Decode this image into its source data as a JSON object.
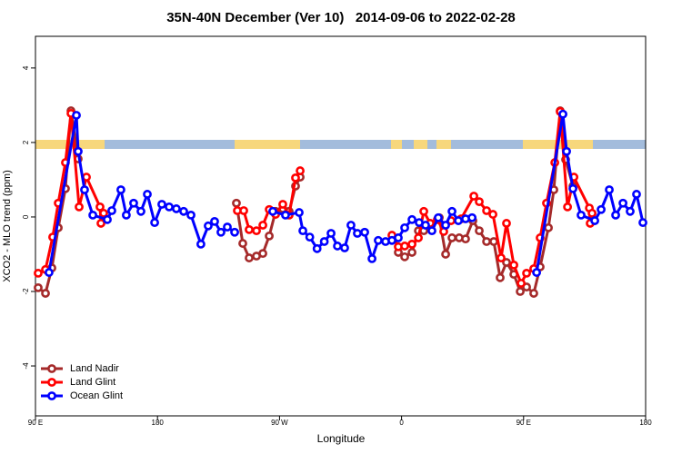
{
  "chart_data": {
    "type": "line",
    "title": "35N-40N December (Ver 10)   2014-09-06 to 2022-02-28",
    "x_label": "Longitude",
    "y_label": "XCO2 - MLO trend (ppm)",
    "xlim": [
      90,
      540
    ],
    "ylim": [
      -5.34,
      4.85
    ],
    "xticks": [
      {
        "value": 90,
        "label": "90 E"
      },
      180,
      {
        "value": 270,
        "label": "90 W"
      },
      {
        "value": 360,
        "label": "0"
      },
      {
        "value": 450,
        "label": "90 E"
      },
      {
        "value": 540,
        "label": "180"
      }
    ],
    "yticks": [
      -4,
      -2,
      0,
      2,
      4
    ],
    "legend": "bottom-left",
    "series": [
      {
        "name": "Land Nadir",
        "color": "#a52a2a",
        "x": [
          92,
          97.4,
          102.1,
          106.8,
          112.1,
          116.2,
          121.5,
          null,
          238.2,
          242.9,
          247.6,
          253,
          257.7,
          262.4,
          267.1,
          272.4,
          277.1,
          281.8,
          285.2,
          null,
          357.6,
          362.3,
          367.7,
          372.4,
          376.4,
          381.8,
          387.8,
          392.5,
          397.2,
          402.5,
          407.2,
          412.6,
          417.3,
          422.7,
          428,
          432.7,
          437.4,
          442.8,
          447.5,
          452.2,
          457.5,
          462.2,
          468.3,
          472.3,
          477,
          481,
          486.4
        ],
        "values": [
          -1.9,
          -2.05,
          -1.37,
          -0.29,
          0.76,
          2.85,
          1.56,
          null,
          0.37,
          -0.71,
          -1.1,
          -1.05,
          -0.98,
          -0.51,
          0.15,
          0.22,
          0.15,
          0.83,
          1.07,
          null,
          -0.95,
          -1.07,
          -0.95,
          -0.37,
          -0.37,
          -0.22,
          -0.02,
          -1.0,
          -0.56,
          -0.56,
          -0.59,
          -0.1,
          -0.37,
          -0.66,
          -0.66,
          -1.63,
          -1.22,
          -1.54,
          -2.0,
          -1.88,
          -2.05,
          -1.34,
          -0.29,
          0.73,
          2.85,
          1.54,
          0.83
        ]
      },
      {
        "name": "Land Glint",
        "color": "#ff0000",
        "x": [
          92,
          97.4,
          102.7,
          106.8,
          112.1,
          116.2,
          122.2,
          127.6,
          137.6,
          138.3,
          140.3,
          null,
          238.9,
          243.6,
          247.6,
          253,
          257.7,
          262.4,
          267.1,
          272.4,
          277.1,
          281.8,
          285.2,
          null,
          352.9,
          357.6,
          362.3,
          367.7,
          372.4,
          376.4,
          381.1,
          386.4,
          391.1,
          396.5,
          403.9,
          413.3,
          417.3,
          422.7,
          427.4,
          433.4,
          437.4,
          442.8,
          448.2,
          452.2,
          457.5,
          462.2,
          466.9,
          473,
          477,
          482.4,
          487.1,
          498.5,
          499.1,
          500.5
        ],
        "values": [
          -1.51,
          -1.41,
          -0.54,
          0.37,
          1.46,
          2.78,
          0.27,
          1.07,
          0.27,
          -0.17,
          0.1,
          null,
          0.17,
          0.17,
          -0.34,
          -0.37,
          -0.22,
          0.2,
          0.07,
          0.34,
          0.05,
          1.05,
          1.24,
          null,
          -0.49,
          -0.8,
          -0.78,
          -0.73,
          -0.56,
          0.15,
          -0.17,
          -0.07,
          -0.39,
          -0.1,
          -0.05,
          0.56,
          0.41,
          0.17,
          0.07,
          -1.1,
          -0.17,
          -1.29,
          -1.78,
          -1.51,
          -1.39,
          -0.56,
          0.37,
          1.46,
          2.83,
          0.27,
          1.07,
          0.24,
          -0.17,
          0.1
        ]
      },
      {
        "name": "Ocean Glint",
        "color": "#0000ff",
        "x": [
          100,
          120.2,
          121.5,
          126.2,
          132.3,
          143,
          146.3,
          153,
          157,
          162.4,
          167.8,
          172.5,
          177.9,
          183.2,
          188.6,
          193.9,
          199.3,
          204.7,
          212,
          217.4,
          222.1,
          226.8,
          231.5,
          236.9,
          null,
          265,
          274.4,
          284.5,
          287.2,
          292.3,
          297.7,
          303,
          308,
          312.7,
          318,
          322.7,
          327.4,
          332.8,
          338.2,
          342.8,
          348.2,
          352.9,
          357.6,
          362.3,
          367.7,
          373,
          377.7,
          382.4,
          387.1,
          392.5,
          397.2,
          401.9,
          407.2,
          412,
          null,
          459.6,
          479,
          481.7,
          486.4,
          492.4,
          502.5,
          507.2,
          513.2,
          517.9,
          523.3,
          528.6,
          533.3,
          538
        ],
        "values": [
          -1.49,
          2.73,
          1.76,
          0.73,
          0.05,
          -0.07,
          0.17,
          0.73,
          0.05,
          0.37,
          0.15,
          0.61,
          -0.15,
          0.34,
          0.27,
          0.22,
          0.15,
          0.05,
          -0.73,
          -0.24,
          -0.12,
          -0.41,
          -0.27,
          -0.41,
          null,
          0.15,
          0.05,
          0.12,
          -0.37,
          -0.54,
          -0.85,
          -0.66,
          -0.44,
          -0.78,
          -0.83,
          -0.22,
          -0.44,
          -0.41,
          -1.12,
          -0.63,
          -0.66,
          -0.63,
          -0.56,
          -0.29,
          -0.07,
          -0.15,
          -0.22,
          -0.37,
          -0.02,
          -0.22,
          0.15,
          -0.1,
          -0.05,
          -0.02,
          null,
          -1.49,
          2.76,
          1.76,
          0.76,
          0.05,
          -0.1,
          0.2,
          0.73,
          0.05,
          0.37,
          0.15,
          0.61,
          -0.15
        ]
      }
    ]
  }
}
